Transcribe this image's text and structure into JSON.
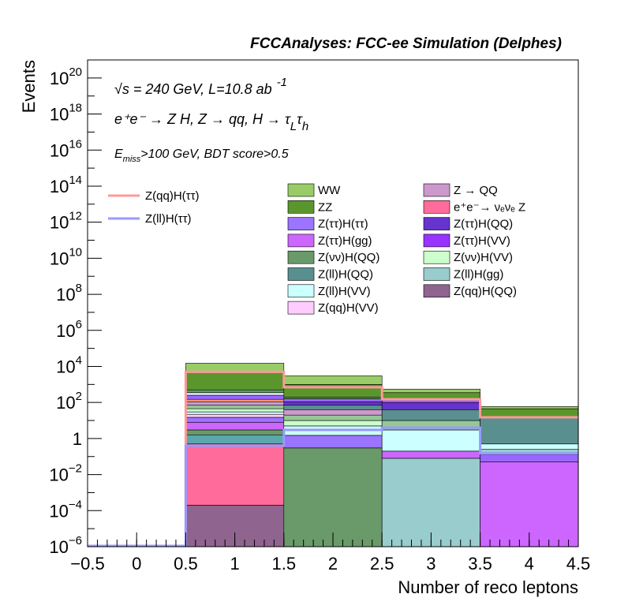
{
  "chart_data": {
    "type": "bar",
    "stacked": true,
    "title": "FCCAnalyses: FCC-ee Simulation (Delphes)",
    "xlabel": "Number of reco leptons",
    "ylabel": "Events",
    "y_scale": "log",
    "xlim": [
      -0.5,
      4.5
    ],
    "ylim": [
      1e-06,
      1e+21
    ],
    "grid": false,
    "x_ticks": [
      "−0.5",
      "0",
      "0.5",
      "1",
      "1.5",
      "2",
      "2.5",
      "3",
      "3.5",
      "4",
      "4.5"
    ],
    "y_ticks": [
      {
        "base": "10",
        "exp": "−6"
      },
      {
        "base": "10",
        "exp": "−4"
      },
      {
        "base": "10",
        "exp": "−2"
      },
      {
        "base": "1",
        "exp": ""
      },
      {
        "base": "10",
        "exp": "2"
      },
      {
        "base": "10",
        "exp": "4"
      },
      {
        "base": "10",
        "exp": "6"
      },
      {
        "base": "10",
        "exp": "8"
      },
      {
        "base": "10",
        "exp": "10"
      },
      {
        "base": "10",
        "exp": "12"
      },
      {
        "base": "10",
        "exp": "14"
      },
      {
        "base": "10",
        "exp": "16"
      },
      {
        "base": "10",
        "exp": "18"
      },
      {
        "base": "10",
        "exp": "20"
      }
    ],
    "bins": [
      {
        "low": 0.5,
        "high": 1.5,
        "label": "1"
      },
      {
        "low": 1.5,
        "high": 2.5,
        "label": "2"
      },
      {
        "low": 2.5,
        "high": 3.5,
        "label": "3"
      },
      {
        "low": 3.5,
        "high": 4.5,
        "label": "4"
      }
    ],
    "stack_bin1": [
      {
        "color": "#8f648f",
        "top": 0.0002
      },
      {
        "color": "#ff6b9a",
        "top": 0.5
      },
      {
        "color": "#5aa8ad",
        "top": 1.6
      },
      {
        "color": "#6a9a6a",
        "top": 3
      },
      {
        "color": "#cc66ff",
        "top": 8
      },
      {
        "color": "#9b74ff",
        "top": 15
      },
      {
        "color": "#ffccff",
        "top": 22
      },
      {
        "color": "#ccffff",
        "top": 30
      },
      {
        "color": "#ccffcc",
        "top": 45
      },
      {
        "color": "#96c896",
        "top": 70
      },
      {
        "color": "#cc99cc",
        "top": 110
      },
      {
        "color": "#ff9966",
        "top": 150
      },
      {
        "color": "#9966ff",
        "top": 250
      },
      {
        "color": "#e0e0ff",
        "top": 350
      },
      {
        "color": "#5ea05e",
        "top": 500
      },
      {
        "color": "#5a962c",
        "top": 5000
      },
      {
        "color": "#99cc66",
        "top": 15000
      }
    ],
    "stack_bin2": [
      {
        "color": "#6a9a6a",
        "top": 0.3
      },
      {
        "color": "#9b74ff",
        "top": 1.5
      },
      {
        "color": "#ccffff",
        "top": 5
      },
      {
        "color": "#ccffcc",
        "top": 10
      },
      {
        "color": "#96c896",
        "top": 20
      },
      {
        "color": "#cc99cc",
        "top": 40
      },
      {
        "color": "#5a8f8f",
        "top": 70
      },
      {
        "color": "#6633cc",
        "top": 110
      },
      {
        "color": "#9966ff",
        "top": 160
      },
      {
        "color": "#6a9a6a",
        "top": 200
      },
      {
        "color": "#5a962c",
        "top": 1000
      },
      {
        "color": "#99cc66",
        "top": 3000
      }
    ],
    "stack_bin3": [
      {
        "color": "#99cccc",
        "top": 0.08
      },
      {
        "color": "#cc66ff",
        "top": 0.2
      },
      {
        "color": "#ccffff",
        "top": 3
      },
      {
        "color": "#96c896",
        "top": 10
      },
      {
        "color": "#5a8f8f",
        "top": 40
      },
      {
        "color": "#6633cc",
        "top": 100
      },
      {
        "color": "#9966ff",
        "top": 150
      },
      {
        "color": "#5a962c",
        "top": 350
      },
      {
        "color": "#99cc66",
        "top": 550
      }
    ],
    "stack_bin4": [
      {
        "color": "#cc66ff",
        "top": 0.05
      },
      {
        "color": "#9966ff",
        "top": 0.13
      },
      {
        "color": "#99cccc",
        "top": 0.25
      },
      {
        "color": "#ccffff",
        "top": 0.5
      },
      {
        "color": "#5a8f8f",
        "top": 15
      },
      {
        "color": "#5a962c",
        "top": 45
      },
      {
        "color": "#99cc66",
        "top": 60
      }
    ],
    "signal_series": [
      {
        "name": "Z(qq)H(ττ)",
        "color": "#ff9999",
        "values": [
          5000,
          700,
          150,
          15
        ]
      },
      {
        "name": "Z(ll)H(ττ)",
        "color": "#9999ff",
        "values": [
          0.4,
          3,
          4,
          0.15
        ]
      }
    ],
    "legend_signal": [
      {
        "label": "Z(qq)H(ττ)",
        "color": "#ff9999"
      },
      {
        "label": "Z(ll)H(ττ)",
        "color": "#9999ff"
      }
    ],
    "legend_background": [
      {
        "label": "WW",
        "color": "#99cc66"
      },
      {
        "label": "Z → QQ",
        "color": "#cc99cc"
      },
      {
        "label": "ZZ",
        "color": "#5a962c"
      },
      {
        "label": "e⁺e⁻→ νₑνₑ Z",
        "color": "#ff6b9a"
      },
      {
        "label": "Z(ττ)H(ττ)",
        "color": "#9b74ff"
      },
      {
        "label": "Z(ττ)H(QQ)",
        "color": "#6633cc"
      },
      {
        "label": "Z(ττ)H(gg)",
        "color": "#cc66ff"
      },
      {
        "label": "Z(ττ)H(VV)",
        "color": "#9933ff"
      },
      {
        "label": "Z(νν)H(QQ)",
        "color": "#6a9a6a"
      },
      {
        "label": "Z(νν)H(VV)",
        "color": "#ccffcc"
      },
      {
        "label": "Z(ll)H(QQ)",
        "color": "#5a8f8f"
      },
      {
        "label": "Z(ll)H(gg)",
        "color": "#99cccc"
      },
      {
        "label": "Z(ll)H(VV)",
        "color": "#ccffff"
      },
      {
        "label": "Z(qq)H(QQ)",
        "color": "#8f648f"
      },
      {
        "label": "Z(qq)H(VV)",
        "color": "#ffccff"
      }
    ],
    "annotations": {
      "line1": "√s = 240 GeV, L=10.8 ab",
      "line1_sup": "-1",
      "line2": "e⁺e⁻ → Z H, Z → qq, H → τ",
      "line2_sub1": "L",
      "line2_tau": "τ",
      "line2_sub2": "h",
      "line3_main": "E",
      "line3_sub": "miss",
      "line3_rest": ">100 GeV, BDT score>0.5"
    }
  }
}
